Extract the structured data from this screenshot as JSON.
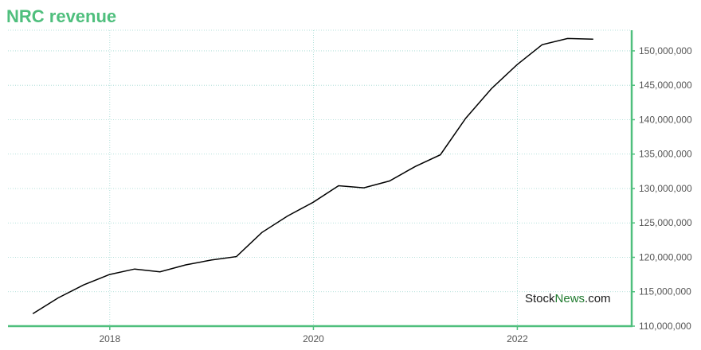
{
  "title": "NRC revenue",
  "watermark": {
    "part1": "Stock",
    "part2": "News",
    "part3": ".com"
  },
  "colors": {
    "accent": "#4fbf7d",
    "line": "#000000",
    "grid": "#9ed8d0",
    "watermark_dark": "#1a1a1a",
    "watermark_green": "#1f7a2e"
  },
  "chart_data": {
    "type": "line",
    "title": "NRC revenue",
    "xlabel": "",
    "ylabel": "",
    "x_ticks": [
      "2018",
      "2020",
      "2022"
    ],
    "y_ticks": [
      "110,000,000",
      "115,000,000",
      "120,000,000",
      "125,000,000",
      "130,000,000",
      "135,000,000",
      "140,000,000",
      "145,000,000",
      "150,000,000"
    ],
    "ylim": [
      110000000,
      153000000
    ],
    "xlim": [
      "2017-01-01",
      "2023-02-15"
    ],
    "grid": true,
    "series": [
      {
        "points": [
          {
            "x": "2017-03-31",
            "y": 111800000
          },
          {
            "x": "2017-06-30",
            "y": 114100000
          },
          {
            "x": "2017-09-30",
            "y": 116000000
          },
          {
            "x": "2017-12-31",
            "y": 117500000
          },
          {
            "x": "2018-03-31",
            "y": 118300000
          },
          {
            "x": "2018-06-30",
            "y": 117900000
          },
          {
            "x": "2018-09-30",
            "y": 118900000
          },
          {
            "x": "2018-12-31",
            "y": 119600000
          },
          {
            "x": "2019-03-31",
            "y": 120100000
          },
          {
            "x": "2019-06-30",
            "y": 123600000
          },
          {
            "x": "2019-09-30",
            "y": 126000000
          },
          {
            "x": "2019-12-31",
            "y": 128000000
          },
          {
            "x": "2020-03-31",
            "y": 130400000
          },
          {
            "x": "2020-06-30",
            "y": 130100000
          },
          {
            "x": "2020-09-30",
            "y": 131100000
          },
          {
            "x": "2020-12-31",
            "y": 133200000
          },
          {
            "x": "2021-03-31",
            "y": 134900000
          },
          {
            "x": "2021-06-30",
            "y": 140200000
          },
          {
            "x": "2021-09-30",
            "y": 144500000
          },
          {
            "x": "2021-12-31",
            "y": 148000000
          },
          {
            "x": "2022-03-31",
            "y": 150900000
          },
          {
            "x": "2022-06-30",
            "y": 151800000
          },
          {
            "x": "2022-09-30",
            "y": 151700000
          }
        ]
      }
    ]
  }
}
